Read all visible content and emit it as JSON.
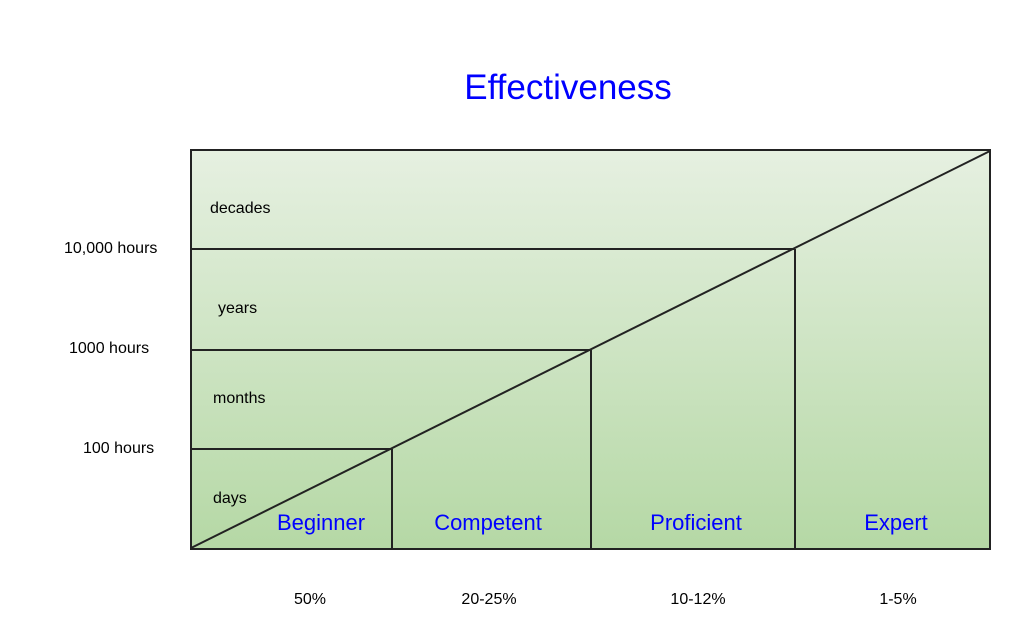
{
  "title": "Effectiveness",
  "y_axis_labels": [
    "10,000 hours",
    "1000 hours",
    "100 hours"
  ],
  "time_bands": [
    "decades",
    "years",
    "months",
    "days"
  ],
  "levels": [
    "Beginner",
    "Competent",
    "Proficient",
    "Expert"
  ],
  "percentages": [
    "50%",
    "20-25%",
    "10-12%",
    "1-5%"
  ],
  "colors": {
    "title": "#0000ff",
    "level_labels": "#0000ff",
    "gradient_top": "#e6f0e1",
    "gradient_bottom": "#b5d8a5",
    "lines": "#222222"
  }
}
